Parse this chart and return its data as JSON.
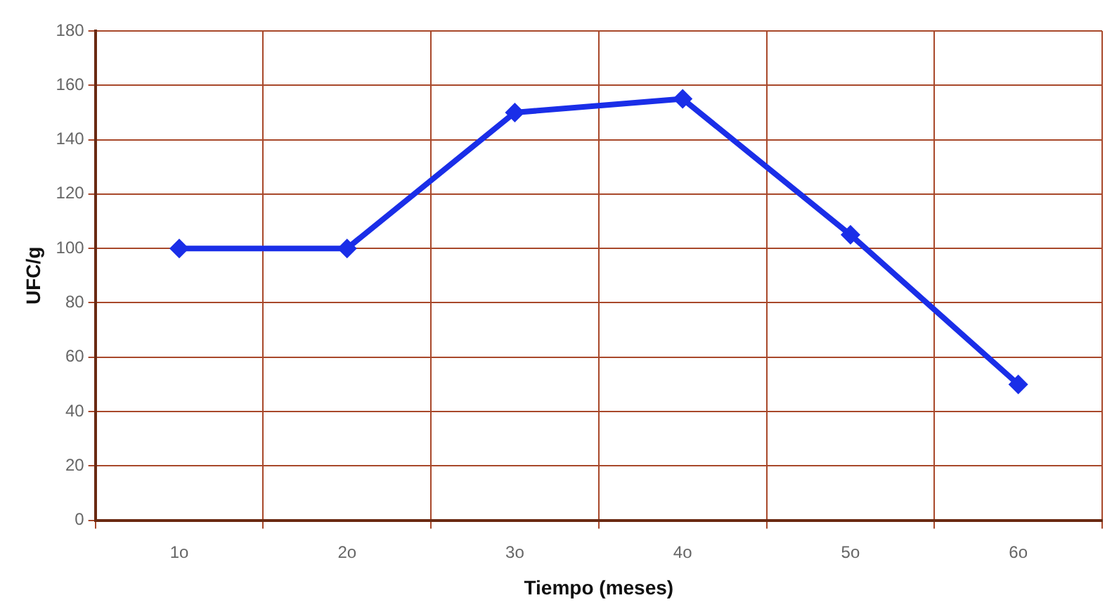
{
  "chart_data": {
    "type": "line",
    "xlabel": "Tiempo (meses)",
    "ylabel": "UFC/g",
    "categories": [
      "1o",
      "2o",
      "3o",
      "4o",
      "5o",
      "6o"
    ],
    "series": [
      {
        "color": "#1a2ee8",
        "values": [
          100,
          100,
          150,
          155,
          105,
          50
        ]
      }
    ],
    "ylim": [
      0,
      180
    ],
    "yticks": [
      0,
      20,
      40,
      60,
      80,
      100,
      120,
      140,
      160,
      180
    ],
    "grid": true,
    "marker": "diamond",
    "line_style": "solid"
  }
}
